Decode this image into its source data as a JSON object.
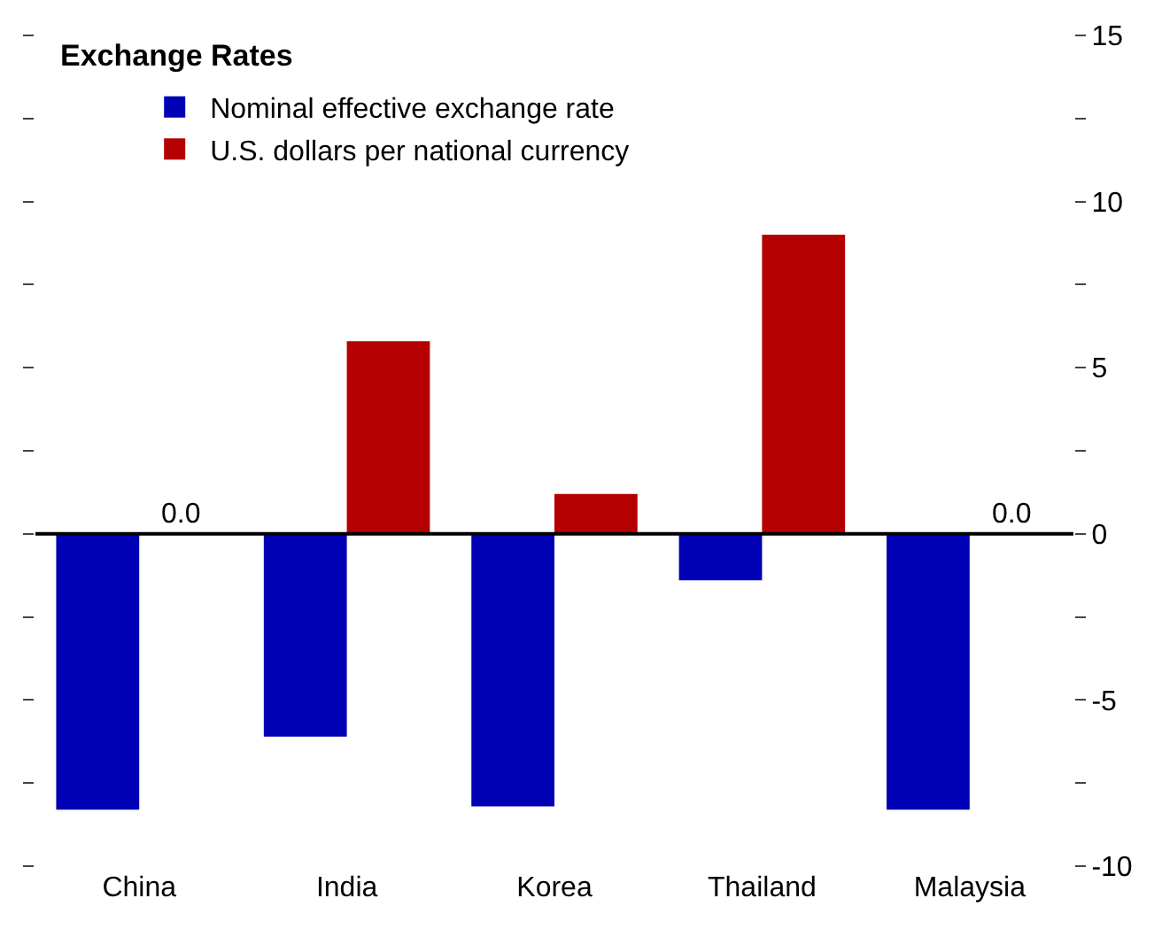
{
  "chart_data": {
    "type": "bar",
    "title": "Exchange Rates",
    "categories": [
      "China",
      "India",
      "Korea",
      "Thailand",
      "Malaysia"
    ],
    "series": [
      {
        "name": "Nominal effective exchange rate",
        "color": "#0000b4",
        "values": [
          -8.3,
          -6.1,
          -8.2,
          -1.4,
          -8.3
        ]
      },
      {
        "name": "U.S. dollars per national currency",
        "color": "#b40000",
        "values": [
          0,
          5.8,
          1.2,
          9.0,
          0
        ]
      }
    ],
    "annotations": [
      {
        "text": "0.0",
        "x": "China",
        "y": 0
      },
      {
        "text": "0.0",
        "x": "Malaysia",
        "y": 0
      }
    ],
    "ref_lines": [
      {
        "axis": "y",
        "value": 0,
        "color": "#000000"
      }
    ],
    "ylim": [
      -10,
      15
    ],
    "yticks": [
      -10,
      {
        "value": -7.5,
        "label": null
      },
      -5,
      {
        "value": -2.5,
        "label": null
      },
      0,
      {
        "value": 2.5,
        "label": null
      },
      5,
      {
        "value": 7.5,
        "label": null
      },
      10,
      {
        "value": 12.5,
        "label": null
      },
      15
    ],
    "grid": false,
    "legend": "top left"
  }
}
